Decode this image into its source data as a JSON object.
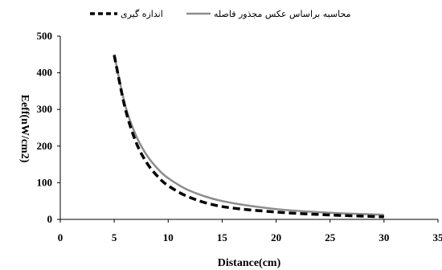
{
  "chart_data": {
    "type": "line",
    "title": "",
    "xlabel": "Distance(cm)",
    "ylabel": "Eeff(nW/cm2)",
    "xlim": [
      0,
      35
    ],
    "ylim": [
      0,
      500
    ],
    "x_ticks": [
      0,
      5,
      10,
      15,
      20,
      25,
      30,
      35
    ],
    "y_ticks": [
      0,
      100,
      200,
      300,
      400,
      500
    ],
    "grid": false,
    "legend_position": "top",
    "series": [
      {
        "name": "اندازه گیری",
        "style": "dashed",
        "color": "#000000",
        "x": [
          5,
          6,
          7,
          8,
          9,
          10,
          12,
          15,
          20,
          25,
          30
        ],
        "y": [
          448,
          305,
          212,
          155,
          118,
          92,
          60,
          35,
          20,
          12,
          7
        ]
      },
      {
        "name": "محاسبه براساس عکس مجذور فاصله",
        "style": "solid",
        "color": "#8c8c8c",
        "x": [
          5,
          6,
          7,
          8,
          9,
          10,
          12,
          15,
          20,
          25,
          30
        ],
        "y": [
          450,
          312.5,
          229.6,
          175.8,
          138.9,
          112.5,
          78.1,
          50,
          28.1,
          18,
          12.5
        ]
      }
    ]
  }
}
